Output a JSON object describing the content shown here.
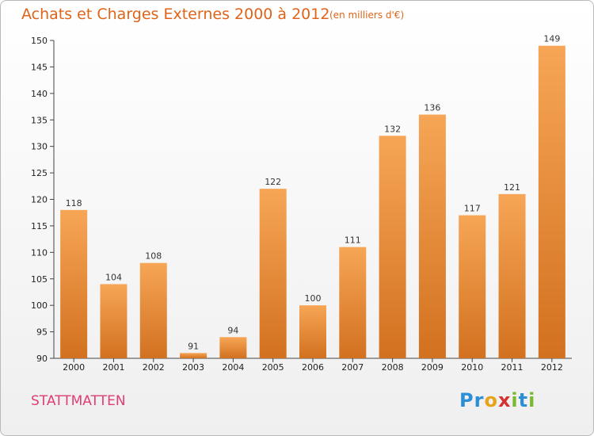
{
  "title": "Achats et Charges Externes 2000 à 2012",
  "subtitle": "(en milliers d'€)",
  "commune": "STATTMATTEN",
  "brand": {
    "letters": [
      "P",
      "r",
      "o",
      "x",
      "i",
      "t",
      "i"
    ],
    "colors": [
      "#2a8fd6",
      "#2a8fd6",
      "#e8a419",
      "#d63131",
      "#79b92e",
      "#2a8fd6",
      "#79b92e"
    ]
  },
  "colors": {
    "title": "#df6419",
    "commune": "#df3d73",
    "bar_top": "#f6a656",
    "bar_bottom": "#d2711f"
  },
  "chart_data": {
    "type": "bar",
    "categories": [
      "2000",
      "2001",
      "2002",
      "2003",
      "2004",
      "2005",
      "2006",
      "2007",
      "2008",
      "2009",
      "2010",
      "2011",
      "2012"
    ],
    "values": [
      118,
      104,
      108,
      91,
      94,
      122,
      100,
      111,
      132,
      136,
      117,
      121,
      149
    ],
    "title": "Achats et Charges Externes 2000 à 2012",
    "subtitle": "(en milliers d'€)",
    "ylim": [
      90,
      150
    ],
    "yticks": [
      90,
      95,
      100,
      105,
      110,
      115,
      120,
      125,
      130,
      135,
      140,
      145,
      150
    ],
    "grid": false,
    "legend": "none"
  }
}
